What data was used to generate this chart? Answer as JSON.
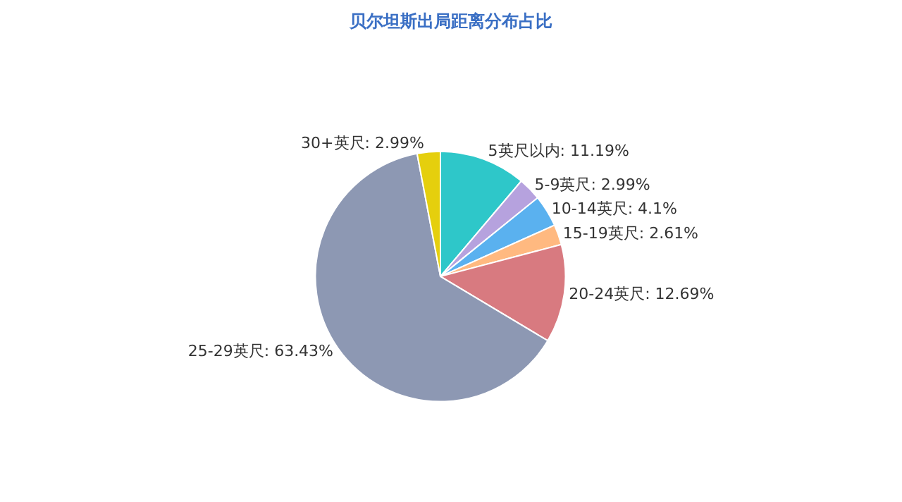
{
  "chart_data": {
    "type": "pie",
    "title": "贝尔坦斯出局距离分布占比",
    "categories": [
      "5英尺以内",
      "5-9英尺",
      "10-14英尺",
      "15-19英尺",
      "20-24英尺",
      "25-29英尺",
      "30+英尺"
    ],
    "values": [
      11.19,
      2.99,
      4.1,
      2.61,
      12.69,
      63.43,
      2.99
    ],
    "value_labels": [
      "11.19%",
      "2.99%",
      "4.1%",
      "2.61%",
      "12.69%",
      "63.43%",
      "2.99%"
    ],
    "colors": [
      "#2ec7c9",
      "#b6a2de",
      "#5ab1ef",
      "#ffb980",
      "#d87a80",
      "#8d98b3",
      "#e5cf0d"
    ],
    "legend": false
  }
}
